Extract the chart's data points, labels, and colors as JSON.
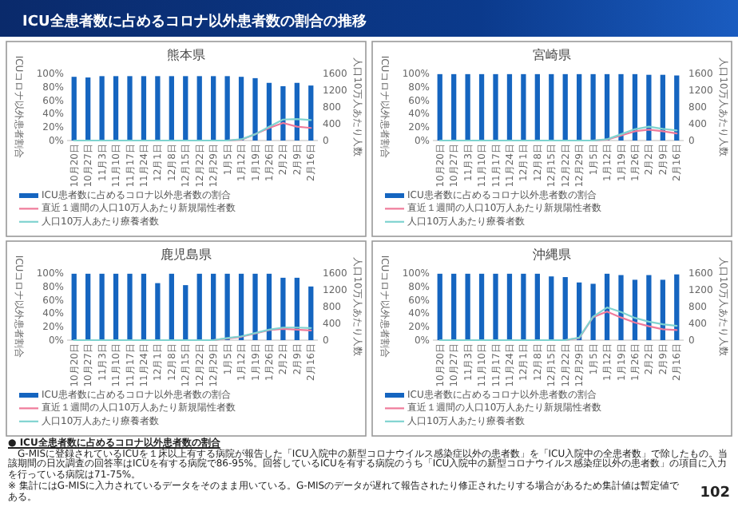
{
  "chart_data": [
    {
      "type": "other",
      "title": "ICU全患者数に占めるコロナ以外患者数の割合の推移"
    },
    {
      "type": "bar",
      "title": "熊本県",
      "ylabel": "ICUコロナ以外患者割合",
      "y2label": "人口10万人あたり人数",
      "legend": "bottom",
      "categories": [
        "10月20日",
        "10月27日",
        "11月3日",
        "11月10日",
        "11月17日",
        "11月24日",
        "12月1日",
        "12月8日",
        "12月15日",
        "12月22日",
        "12月29日",
        "1月5日",
        "1月12日",
        "1月19日",
        "1月26日",
        "2月2日",
        "2月9日",
        "2月16日"
      ],
      "ylim": [
        0,
        1
      ],
      "yticks": [
        {
          "value": 0,
          "label": "0%"
        },
        {
          "value": 0.2,
          "label": "20%"
        },
        {
          "value": 0.4,
          "label": "40%"
        },
        {
          "value": 0.6,
          "label": "60%"
        },
        {
          "value": 0.8,
          "label": "80%"
        },
        {
          "value": 1,
          "label": "100%"
        }
      ],
      "y2lim": [
        0,
        1600
      ],
      "y2ticks": [
        0,
        400,
        800,
        1200,
        1600
      ],
      "series": [
        {
          "type": "bar",
          "name": "ICU患者数に占めるコロナ以外患者数の割合",
          "color": "#1565c0",
          "values": [
            0.95,
            0.94,
            0.96,
            0.96,
            0.96,
            0.96,
            0.96,
            0.96,
            0.96,
            0.96,
            0.96,
            0.96,
            0.95,
            0.93,
            0.86,
            0.81,
            0.86,
            0.82
          ]
        },
        {
          "type": "line",
          "axis": "y2",
          "name": "直近１週間の人口10万人あたり新規陽性者数",
          "color": "#ef7a9a",
          "values": [
            null,
            null,
            null,
            null,
            null,
            null,
            null,
            null,
            null,
            null,
            null,
            0,
            20,
            150,
            300,
            420,
            330,
            300
          ]
        },
        {
          "type": "line",
          "axis": "y2",
          "name": "人口10万人あたり療養者数",
          "color": "#7fd3d0",
          "values": [
            0,
            0,
            0,
            0,
            0,
            0,
            0,
            0,
            0,
            0,
            0,
            0,
            30,
            150,
            330,
            500,
            510,
            490
          ]
        }
      ]
    },
    {
      "type": "bar",
      "title": "宮崎県",
      "ylabel": "ICUコロナ以外患者割合",
      "y2label": "人口10万人あたり人数",
      "legend": "bottom",
      "categories": [
        "10月20日",
        "10月27日",
        "11月3日",
        "11月10日",
        "11月17日",
        "11月24日",
        "12月1日",
        "12月8日",
        "12月15日",
        "12月22日",
        "12月29日",
        "1月5日",
        "1月12日",
        "1月19日",
        "1月26日",
        "2月2日",
        "2月9日",
        "2月16日"
      ],
      "ylim": [
        0,
        1
      ],
      "yticks": [
        {
          "value": 0,
          "label": "0%"
        },
        {
          "value": 0.2,
          "label": "20%"
        },
        {
          "value": 0.4,
          "label": "40%"
        },
        {
          "value": 0.6,
          "label": "60%"
        },
        {
          "value": 0.8,
          "label": "80%"
        },
        {
          "value": 1,
          "label": "100%"
        }
      ],
      "y2lim": [
        0,
        1600
      ],
      "y2ticks": [
        0,
        400,
        800,
        1200,
        1600
      ],
      "series": [
        {
          "type": "bar",
          "name": "ICU患者数に占めるコロナ以外患者数の割合",
          "color": "#1565c0",
          "values": [
            0.99,
            0.99,
            0.99,
            0.99,
            0.99,
            0.99,
            0.99,
            0.99,
            0.99,
            0.99,
            0.99,
            0.99,
            0.99,
            0.99,
            0.99,
            0.98,
            0.98,
            0.97
          ]
        },
        {
          "type": "line",
          "axis": "y2",
          "name": "直近１週間の人口10万人あたり新規陽性者数",
          "color": "#ef7a9a",
          "values": [
            null,
            null,
            null,
            null,
            null,
            null,
            null,
            null,
            null,
            null,
            null,
            0,
            20,
            120,
            220,
            260,
            220,
            170
          ]
        },
        {
          "type": "line",
          "axis": "y2",
          "name": "人口10万人あたり療養者数",
          "color": "#7fd3d0",
          "values": [
            0,
            0,
            0,
            0,
            0,
            0,
            0,
            0,
            0,
            0,
            0,
            0,
            30,
            150,
            270,
            330,
            280,
            240
          ]
        }
      ]
    },
    {
      "type": "bar",
      "title": "鹿児島県",
      "ylabel": "ICUコロナ以外患者割合",
      "y2label": "人口10万人あたり人数",
      "legend": "bottom",
      "categories": [
        "10月20日",
        "10月27日",
        "11月3日",
        "11月10日",
        "11月17日",
        "11月24日",
        "12月1日",
        "12月8日",
        "12月15日",
        "12月22日",
        "12月29日",
        "1月5日",
        "1月12日",
        "1月19日",
        "1月26日",
        "2月2日",
        "2月9日",
        "2月16日"
      ],
      "ylim": [
        0,
        1
      ],
      "yticks": [
        {
          "value": 0,
          "label": "0%"
        },
        {
          "value": 0.2,
          "label": "20%"
        },
        {
          "value": 0.4,
          "label": "40%"
        },
        {
          "value": 0.6,
          "label": "60%"
        },
        {
          "value": 0.8,
          "label": "80%"
        },
        {
          "value": 1,
          "label": "100%"
        }
      ],
      "y2lim": [
        0,
        1600
      ],
      "y2ticks": [
        0,
        400,
        800,
        1200,
        1600
      ],
      "series": [
        {
          "type": "bar",
          "name": "ICU患者数に占めるコロナ以外患者数の割合",
          "color": "#1565c0",
          "values": [
            0.99,
            0.99,
            0.99,
            0.99,
            0.99,
            0.99,
            0.85,
            0.99,
            0.82,
            0.99,
            0.99,
            0.99,
            0.99,
            0.99,
            0.99,
            0.93,
            0.93,
            0.8
          ]
        },
        {
          "type": "line",
          "axis": "y2",
          "name": "直近１週間の人口10万人あたり新規陽性者数",
          "color": "#ef7a9a",
          "values": [
            null,
            null,
            null,
            null,
            null,
            null,
            null,
            null,
            null,
            null,
            0,
            40,
            80,
            160,
            240,
            270,
            250,
            230
          ]
        },
        {
          "type": "line",
          "axis": "y2",
          "name": "人口10万人あたり療養者数",
          "color": "#7fd3d0",
          "values": [
            0,
            0,
            0,
            0,
            0,
            0,
            0,
            0,
            0,
            0,
            0,
            50,
            90,
            170,
            250,
            300,
            300,
            290
          ]
        }
      ]
    },
    {
      "type": "bar",
      "title": "沖縄県",
      "ylabel": "ICUコロナ以外患者割合",
      "y2label": "人口10万人あたり人数",
      "legend": "bottom",
      "categories": [
        "10月20日",
        "10月27日",
        "11月3日",
        "11月10日",
        "11月17日",
        "11月24日",
        "12月1日",
        "12月8日",
        "12月15日",
        "12月22日",
        "12月29日",
        "1月5日",
        "1月12日",
        "1月19日",
        "1月26日",
        "2月2日",
        "2月9日",
        "2月16日"
      ],
      "ylim": [
        0,
        1
      ],
      "yticks": [
        {
          "value": 0,
          "label": "0%"
        },
        {
          "value": 0.2,
          "label": "20%"
        },
        {
          "value": 0.4,
          "label": "40%"
        },
        {
          "value": 0.6,
          "label": "60%"
        },
        {
          "value": 0.8,
          "label": "80%"
        },
        {
          "value": 1,
          "label": "100%"
        }
      ],
      "y2lim": [
        0,
        1600
      ],
      "y2ticks": [
        0,
        400,
        800,
        1200,
        1600
      ],
      "series": [
        {
          "type": "bar",
          "name": "ICU患者数に占めるコロナ以外患者数の割合",
          "color": "#1565c0",
          "values": [
            0.99,
            0.99,
            0.99,
            0.99,
            0.99,
            0.99,
            0.99,
            0.99,
            0.95,
            0.94,
            0.86,
            0.84,
            0.99,
            0.97,
            0.9,
            0.97,
            0.9,
            0.98
          ]
        },
        {
          "type": "line",
          "axis": "y2",
          "name": "直近１週間の人口10万人あたり新規陽性者数",
          "color": "#ef7a9a",
          "values": [
            null,
            null,
            null,
            null,
            null,
            null,
            null,
            null,
            null,
            0,
            50,
            550,
            680,
            540,
            420,
            330,
            260,
            240
          ]
        },
        {
          "type": "line",
          "axis": "y2",
          "name": "人口10万人あたり療養者数",
          "color": "#7fd3d0",
          "values": [
            0,
            0,
            0,
            0,
            0,
            0,
            0,
            0,
            0,
            0,
            60,
            560,
            780,
            670,
            530,
            440,
            380,
            340
          ]
        }
      ]
    },
    {
      "type": "other",
      "annotations": [
        "● ICU全患者数に占めるコロナ以外患者数の割合",
        "G-MISに登録されているICUを１床以上有する病院が報告した「ICU入院中の新型コロナウイルス感染症以外の患者数」を「ICU入院中の全患者数」で除したもの。当該期間の日次調査の回答率はICUを有する病院で86-95%。回答しているICUを有する病院のうち「ICU入院中の新型コロナウイルス感染症以外の患者数」の項目に入力を行っている病院は71-75%。",
        "※ 集計にはG-MISに入力されているデータをそのまま用いている。G-MISのデータが遅れて報告されたり修正されたりする場合があるため集計値は暫定値である。",
        "102"
      ]
    }
  ]
}
